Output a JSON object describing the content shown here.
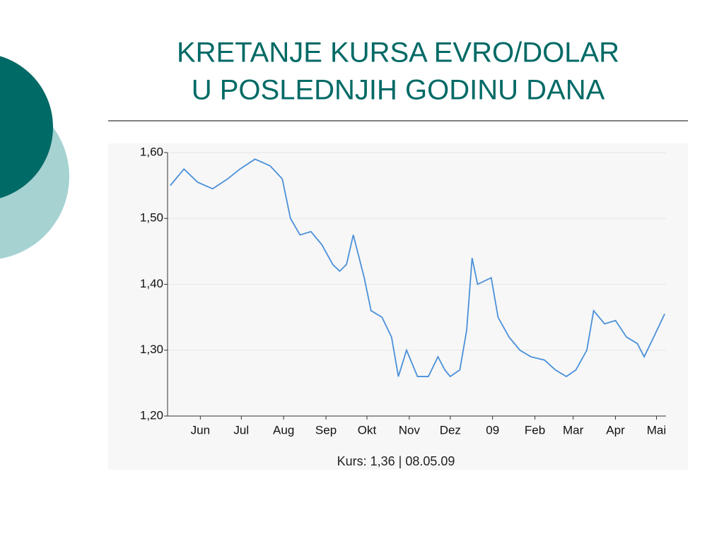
{
  "title": [
    "KRETANJE KURSA EVRO/DOLAR",
    "U POSLEDNJIH GODINU DANA"
  ],
  "chart_data": {
    "type": "line",
    "x": [
      2,
      12,
      22,
      33,
      44,
      53,
      64,
      75,
      84,
      90,
      97,
      105,
      113,
      121,
      126,
      131,
      136,
      144,
      149,
      157,
      164,
      169,
      175,
      183,
      191,
      198,
      203,
      207,
      214,
      219,
      223,
      227,
      237,
      242,
      250,
      258,
      266,
      276,
      284,
      292,
      299,
      307,
      312,
      320,
      328,
      336,
      344,
      349,
      356,
      364
    ],
    "series": [
      {
        "color": "#4a90d9",
        "values": [
          1.55,
          1.575,
          1.555,
          1.545,
          1.56,
          1.575,
          1.59,
          1.58,
          1.56,
          1.5,
          1.475,
          1.48,
          1.46,
          1.43,
          1.42,
          1.43,
          1.475,
          1.41,
          1.36,
          1.35,
          1.32,
          1.26,
          1.3,
          1.26,
          1.26,
          1.29,
          1.27,
          1.26,
          1.27,
          1.33,
          1.44,
          1.4,
          1.41,
          1.35,
          1.32,
          1.3,
          1.29,
          1.285,
          1.27,
          1.26,
          1.27,
          1.3,
          1.36,
          1.34,
          1.345,
          1.32,
          1.31,
          1.29,
          1.32,
          1.355
        ]
      }
    ],
    "xlim": [
      0,
      365
    ],
    "xticks": [
      {
        "value": 24,
        "label": "Jun"
      },
      {
        "value": 54,
        "label": "Jul"
      },
      {
        "value": 85,
        "label": "Aug"
      },
      {
        "value": 116,
        "label": "Sep"
      },
      {
        "value": 146,
        "label": "Okt"
      },
      {
        "value": 177,
        "label": "Nov"
      },
      {
        "value": 207,
        "label": "Dez"
      },
      {
        "value": 238,
        "label": "09"
      },
      {
        "value": 269,
        "label": "Feb"
      },
      {
        "value": 297,
        "label": "Mar"
      },
      {
        "value": 328,
        "label": "Apr"
      },
      {
        "value": 358,
        "label": "Mai"
      }
    ],
    "ylim": [
      1.2,
      1.6
    ],
    "yticks": [
      {
        "value": 1.2,
        "label": "1,20"
      },
      {
        "value": 1.3,
        "label": "1,30"
      },
      {
        "value": 1.4,
        "label": "1,40"
      },
      {
        "value": 1.5,
        "label": "1,50"
      },
      {
        "value": 1.6,
        "label": "1,60"
      }
    ],
    "grid": true,
    "footer": "Kurs: 1,36  |  08.05.09"
  }
}
